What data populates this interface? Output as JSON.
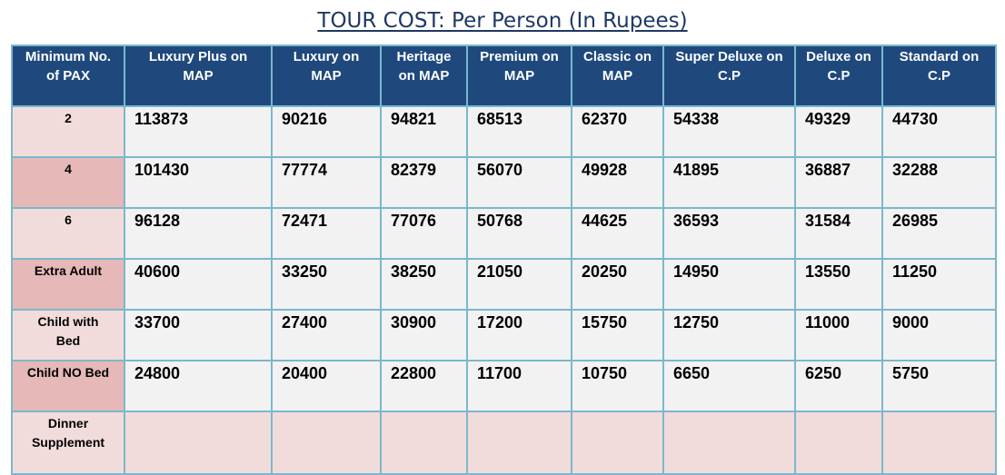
{
  "title": "TOUR COST: Per Person (In Rupees)",
  "table": {
    "headers": [
      "Minimum No.\nof PAX",
      "Luxury Plus on\nMAP",
      "Luxury on\nMAP",
      "Heritage\non MAP",
      "Premium on\nMAP",
      "Classic on\nMAP",
      "Super Deluxe on\nC.P",
      "Deluxe on\nC.P",
      "Standard on\nC.P"
    ],
    "rows": [
      {
        "label": "2",
        "values": [
          "113873",
          "90216",
          "94821",
          "68513",
          "62370",
          "54338",
          "49329",
          "44730"
        ]
      },
      {
        "label": "4",
        "values": [
          "101430",
          "77774",
          "82379",
          "56070",
          "49928",
          "41895",
          "36887",
          "32288"
        ]
      },
      {
        "label": "6",
        "values": [
          "96128",
          "72471",
          "77076",
          "50768",
          "44625",
          "36593",
          "31584",
          "26985"
        ]
      },
      {
        "label": "Extra Adult",
        "values": [
          "40600",
          "33250",
          "38250",
          "21050",
          "20250",
          "14950",
          "13550",
          "11250"
        ]
      },
      {
        "label": "Child with\nBed",
        "values": [
          "33700",
          "27400",
          "30900",
          "17200",
          "15750",
          "12750",
          "11000",
          "9000"
        ]
      },
      {
        "label": "Child NO Bed",
        "values": [
          "24800",
          "20400",
          "22800",
          "11700",
          "10750",
          "6650",
          "6250",
          "5750"
        ]
      },
      {
        "label": "Dinner\nSupplement",
        "values": [
          "",
          "",
          "",
          "",
          "",
          "",
          "",
          ""
        ]
      }
    ]
  },
  "colors": {
    "header_bg": "#1f497d",
    "title_text": "#1f3864",
    "label_light": "#f2dcdb",
    "label_dark": "#e6b8b7",
    "cell_bg": "#f2f2f2",
    "border": "#7ab8cc"
  }
}
